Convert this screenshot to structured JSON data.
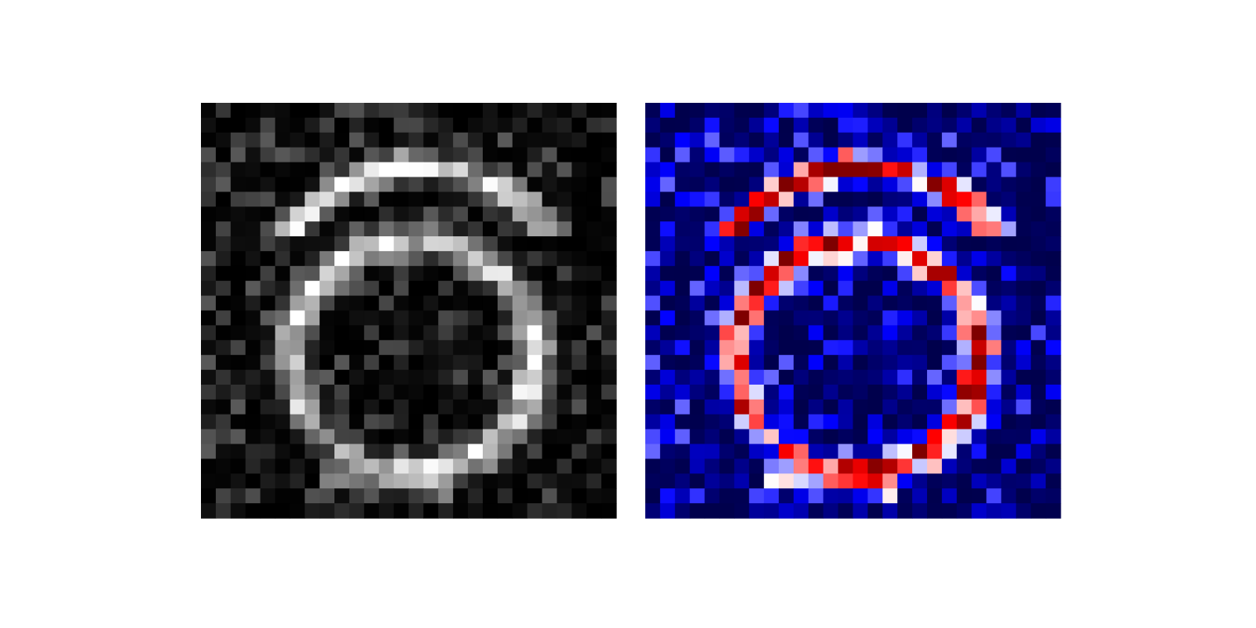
{
  "chart_data": [
    {
      "type": "heatmap",
      "colormap": "gray",
      "colors": [
        "#000000",
        "#ffffff"
      ],
      "rows": 28,
      "cols": 28,
      "pattern": "ring-with-outer-arc",
      "vmin": 0,
      "vmax": 1,
      "noise_level": 0.16,
      "seed": 11
    },
    {
      "type": "heatmap",
      "colormap": "seismic",
      "colors": [
        "#00004c",
        "#0000ff",
        "#ffffff",
        "#ff0000",
        "#7f0000"
      ],
      "rows": 28,
      "cols": 28,
      "pattern": "ring-with-outer-arc",
      "vmin": 0,
      "vmax": 1,
      "noise_level": 0.16,
      "seed": 11
    }
  ]
}
